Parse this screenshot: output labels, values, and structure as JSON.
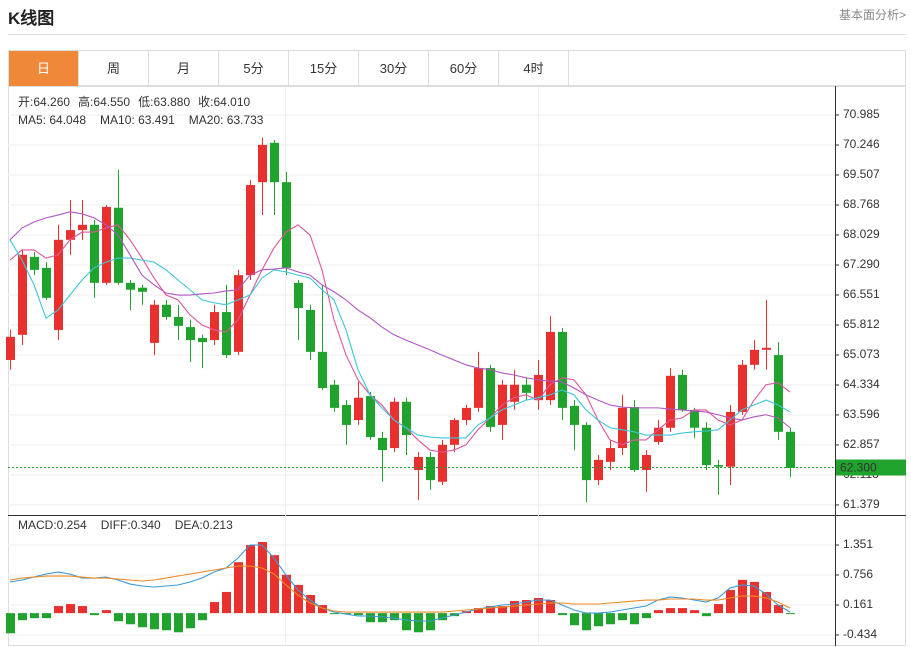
{
  "header": {
    "title": "K线图",
    "link": "基本面分析>"
  },
  "tabs": [
    "日",
    "周",
    "月",
    "5分",
    "15分",
    "30分",
    "60分",
    "4时"
  ],
  "active_tab": 0,
  "chart_data": [
    {
      "type": "candlestick",
      "info": [
        {
          "label": "开:",
          "value": "64.260"
        },
        {
          "label": "高:",
          "value": "64.550"
        },
        {
          "label": "低:",
          "value": "63.880"
        },
        {
          "label": "收:",
          "value": "64.010"
        }
      ],
      "info_color": "#1fa32c",
      "up_color": "#e8312f",
      "down_color": "#1fa32c",
      "open": [
        64.95,
        65.57,
        67.49,
        67.22,
        65.69,
        67.91,
        68.15,
        68.28,
        66.85,
        68.7,
        66.85,
        66.73,
        65.37,
        66.31,
        66.01,
        65.76,
        65.49,
        65.44,
        66.13,
        65.15,
        67.04,
        69.33,
        70.3,
        69.33,
        66.85,
        66.18,
        65.15,
        64.34,
        63.84,
        63.47,
        64.06,
        63.03,
        62.78,
        63.92,
        62.24,
        62.56,
        61.95,
        62.86,
        63.47,
        63.77,
        64.75,
        63.35,
        63.92,
        64.34,
        63.96,
        63.96,
        65.64,
        63.82,
        63.35,
        61.99,
        62.44,
        62.78,
        63.79,
        62.24,
        62.93,
        63.28,
        64.58,
        63.72,
        63.28,
        62.36,
        62.32,
        63.67,
        64.83,
        65.2,
        65.07,
        63.18
      ],
      "high": [
        65.69,
        67.66,
        67.61,
        67.36,
        68.28,
        68.89,
        68.89,
        68.4,
        68.77,
        69.63,
        66.92,
        66.8,
        66.43,
        66.43,
        66.31,
        65.94,
        65.57,
        66.31,
        66.8,
        67.17,
        69.38,
        70.42,
        70.37,
        69.58,
        66.92,
        66.31,
        66.8,
        64.46,
        63.96,
        64.41,
        64.16,
        63.18,
        64.02,
        64.02,
        62.68,
        62.68,
        62.98,
        63.52,
        63.84,
        65.15,
        64.83,
        64.46,
        64.71,
        64.51,
        64.95,
        66.03,
        65.74,
        63.96,
        63.42,
        62.61,
        62.98,
        64.09,
        63.96,
        62.73,
        63.47,
        64.75,
        64.71,
        63.77,
        63.42,
        62.49,
        63.84,
        64.95,
        65.44,
        66.43,
        65.39,
        63.28
      ],
      "low": [
        64.71,
        65.32,
        67.04,
        66.43,
        65.44,
        67.54,
        67.91,
        66.48,
        66.8,
        66.8,
        66.18,
        66.31,
        65.07,
        65.94,
        65.44,
        64.9,
        64.75,
        65.32,
        65.0,
        65.07,
        66.92,
        68.52,
        68.52,
        67.04,
        65.44,
        64.95,
        64.21,
        63.67,
        62.86,
        63.35,
        62.98,
        61.95,
        62.68,
        62.61,
        61.5,
        61.75,
        61.87,
        62.68,
        63.35,
        63.67,
        63.18,
        62.98,
        63.72,
        63.96,
        63.72,
        63.84,
        63.47,
        62.73,
        61.45,
        61.87,
        62.24,
        62.61,
        62.19,
        61.7,
        62.86,
        63.18,
        63.67,
        63.03,
        62.24,
        61.63,
        61.87,
        63.6,
        64.71,
        64.71,
        62.98,
        62.07
      ],
      "close": [
        65.52,
        67.54,
        67.17,
        66.48,
        67.91,
        68.15,
        68.28,
        66.85,
        68.72,
        66.85,
        66.68,
        66.63,
        66.31,
        66.01,
        65.79,
        65.44,
        65.39,
        66.13,
        65.07,
        67.04,
        69.26,
        70.25,
        69.33,
        67.22,
        66.23,
        65.15,
        64.26,
        63.77,
        63.35,
        64.02,
        63.05,
        62.73,
        63.92,
        63.1,
        62.56,
        61.99,
        62.86,
        63.47,
        63.77,
        64.75,
        63.3,
        64.34,
        64.34,
        64.14,
        64.58,
        65.64,
        63.77,
        63.35,
        61.99,
        62.49,
        62.78,
        63.77,
        62.24,
        62.61,
        63.28,
        64.56,
        63.72,
        63.28,
        62.36,
        62.32,
        63.67,
        64.83,
        65.2,
        65.25,
        63.18,
        62.29
      ],
      "series": [
        {
          "name": "MA5: 64.048",
          "color": "#e0559a",
          "values": [
            67.41,
            67.66,
            67.66,
            67.46,
            67.54,
            67.91,
            68.1,
            68.1,
            68.2,
            68.28,
            67.91,
            67.46,
            66.97,
            66.55,
            66.43,
            66.06,
            65.81,
            65.69,
            65.64,
            65.94,
            66.55,
            67.17,
            67.71,
            68.1,
            68.28,
            68.03,
            67.17,
            65.94,
            65.07,
            64.46,
            64.09,
            63.84,
            63.47,
            63.28,
            62.98,
            62.73,
            62.68,
            62.73,
            62.86,
            63.23,
            63.52,
            63.84,
            64.02,
            64.09,
            63.96,
            64.34,
            64.51,
            64.46,
            64.09,
            63.47,
            62.98,
            62.86,
            62.98,
            62.98,
            63.23,
            63.47,
            63.52,
            63.72,
            63.72,
            63.47,
            63.35,
            63.47,
            63.96,
            64.34,
            64.39,
            64.16
          ]
        },
        {
          "name": "MA10: 63.491",
          "color": "#3cc6d8",
          "values": [
            67.91,
            67.41,
            66.8,
            65.98,
            66.18,
            66.55,
            66.92,
            67.22,
            67.36,
            67.46,
            67.46,
            67.41,
            67.36,
            67.17,
            66.92,
            66.68,
            66.43,
            66.36,
            66.31,
            66.43,
            66.55,
            66.97,
            67.17,
            67.12,
            67.04,
            66.97,
            66.68,
            66.43,
            65.69,
            64.71,
            64.09,
            63.77,
            63.47,
            63.28,
            63.1,
            63.05,
            63.03,
            63.03,
            63.03,
            63.35,
            63.52,
            63.72,
            63.84,
            63.96,
            64.02,
            64.09,
            64.21,
            64.09,
            63.72,
            63.47,
            63.28,
            63.23,
            63.18,
            63.1,
            63.1,
            63.1,
            63.15,
            63.18,
            63.2,
            63.23,
            63.47,
            63.72,
            63.84,
            63.96,
            63.84,
            63.67
          ]
        },
        {
          "name": "MA20: 63.733",
          "color": "#b055c4",
          "values": [
            67.91,
            68.2,
            68.35,
            68.45,
            68.52,
            68.6,
            68.55,
            68.45,
            68.28,
            68.03,
            67.54,
            67.04,
            66.8,
            66.6,
            66.55,
            66.55,
            66.58,
            66.6,
            66.65,
            66.68,
            67.04,
            67.17,
            67.19,
            67.22,
            67.12,
            67.04,
            66.8,
            66.63,
            66.43,
            66.18,
            65.99,
            65.76,
            65.57,
            65.44,
            65.32,
            65.2,
            65.07,
            64.95,
            64.83,
            64.75,
            64.71,
            64.63,
            64.58,
            64.51,
            64.46,
            64.43,
            64.41,
            64.26,
            64.09,
            63.96,
            63.84,
            63.79,
            63.77,
            63.77,
            63.77,
            63.74,
            63.72,
            63.69,
            63.67,
            63.6,
            63.52,
            63.47,
            63.55,
            63.6,
            63.52,
            63.28
          ]
        }
      ],
      "last_price": {
        "value": 62.3,
        "label": "62.300"
      },
      "ylim": [
        61.18,
        71.65
      ],
      "yticks": [
        70.985,
        70.246,
        69.507,
        68.768,
        68.029,
        {
          "value": 67.29,
          "label": "67.290"
        },
        66.551,
        65.812,
        65.073,
        64.334,
        63.596,
        62.857,
        62.118,
        61.379
      ],
      "grid": true
    },
    {
      "type": "macd",
      "histogram": {
        "name": "MACD:0.254",
        "name_color": "#e8312f",
        "up_color": "#e8312f",
        "down_color": "#1fa32c",
        "values": [
          -0.4,
          -0.14,
          -0.1,
          -0.1,
          0.14,
          0.18,
          0.14,
          -0.04,
          0.06,
          -0.16,
          -0.22,
          -0.28,
          -0.32,
          -0.34,
          -0.38,
          -0.3,
          -0.14,
          0.22,
          0.42,
          1.01,
          1.35,
          1.41,
          1.15,
          0.76,
          0.56,
          0.36,
          0.16,
          -0.02,
          -0.02,
          -0.04,
          -0.18,
          -0.18,
          -0.14,
          -0.34,
          -0.38,
          -0.34,
          -0.14,
          -0.06,
          0.04,
          0.1,
          0.14,
          0.14,
          0.24,
          0.26,
          0.3,
          0.26,
          -0.04,
          -0.24,
          -0.34,
          -0.26,
          -0.22,
          -0.14,
          -0.22,
          -0.1,
          0.06,
          0.1,
          0.1,
          0.06,
          -0.06,
          0.18,
          0.46,
          0.66,
          0.62,
          0.42,
          0.16,
          -0.02
        ]
      },
      "series": [
        {
          "name": "DIFF:0.340",
          "color": "#3a9ad9",
          "values": [
            0.617,
            0.657,
            0.716,
            0.776,
            0.815,
            0.776,
            0.696,
            0.696,
            0.716,
            0.657,
            0.577,
            0.538,
            0.518,
            0.538,
            0.558,
            0.617,
            0.696,
            0.815,
            0.895,
            1.093,
            1.351,
            1.351,
            1.093,
            0.756,
            0.458,
            0.26,
            0.102,
            0.022,
            -0.018,
            -0.057,
            -0.057,
            -0.077,
            -0.097,
            -0.136,
            -0.156,
            -0.156,
            -0.097,
            -0.037,
            0.022,
            0.082,
            0.121,
            0.161,
            0.181,
            0.22,
            0.26,
            0.26,
            0.161,
            0.062,
            0.002,
            0.002,
            0.022,
            0.062,
            0.102,
            0.141,
            0.26,
            0.32,
            0.3,
            0.26,
            0.22,
            0.3,
            0.498,
            0.558,
            0.538,
            0.379,
            0.161,
            0.022
          ]
        },
        {
          "name": "DEA:0.213",
          "color": "#f08a24",
          "values": [
            0.657,
            0.696,
            0.716,
            0.736,
            0.736,
            0.736,
            0.716,
            0.696,
            0.696,
            0.677,
            0.657,
            0.637,
            0.657,
            0.696,
            0.736,
            0.776,
            0.815,
            0.855,
            0.895,
            0.934,
            0.934,
            0.895,
            0.776,
            0.558,
            0.359,
            0.201,
            0.102,
            0.042,
            0.022,
            0.022,
            0.022,
            0.022,
            0.022,
            0.022,
            0.022,
            0.022,
            0.022,
            0.042,
            0.062,
            0.082,
            0.102,
            0.121,
            0.141,
            0.161,
            0.181,
            0.201,
            0.201,
            0.181,
            0.181,
            0.181,
            0.201,
            0.22,
            0.24,
            0.26,
            0.26,
            0.28,
            0.28,
            0.28,
            0.26,
            0.26,
            0.3,
            0.339,
            0.339,
            0.3,
            0.22,
            0.102
          ]
        }
      ],
      "ylim": [
        -0.632,
        1.946
      ],
      "yticks": [
        1.351,
        0.756,
        0.161,
        -0.434
      ],
      "grid": true
    }
  ]
}
